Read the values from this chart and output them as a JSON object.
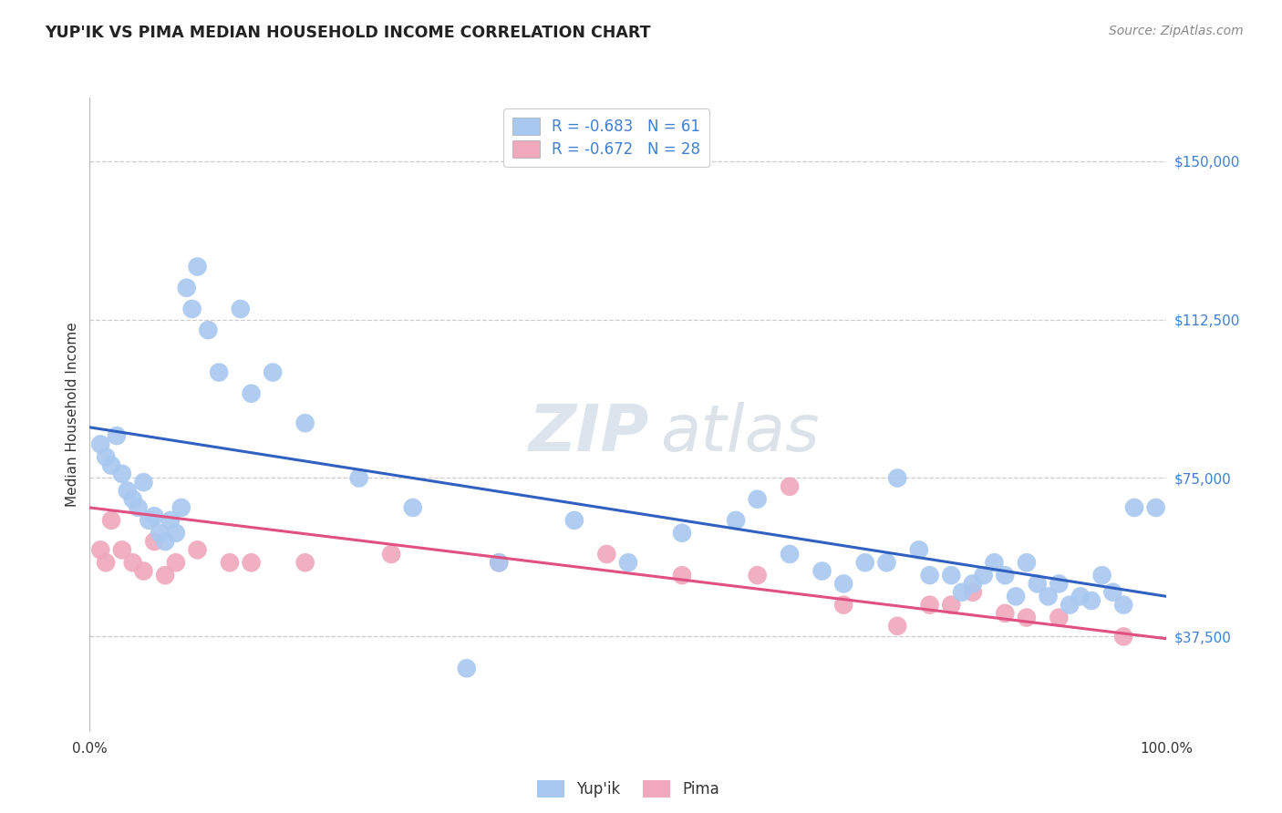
{
  "title": "YUP'IK VS PIMA MEDIAN HOUSEHOLD INCOME CORRELATION CHART",
  "source": "Source: ZipAtlas.com",
  "ylabel": "Median Household Income",
  "xmin": 0.0,
  "xmax": 100.0,
  "ymin": 15000,
  "ymax": 165000,
  "yticks": [
    37500,
    75000,
    112500,
    150000
  ],
  "ytick_labels": [
    "$37,500",
    "$75,000",
    "$112,500",
    "$150,000"
  ],
  "blue_R": -0.683,
  "blue_N": 61,
  "pink_R": -0.672,
  "pink_N": 28,
  "blue_color": "#a8c8f0",
  "pink_color": "#f0a8bc",
  "blue_line_color": "#3060c0",
  "pink_line_color": "#e05080",
  "tick_label_color": "#4080d0",
  "legend_label_blue": "Yup'ik",
  "legend_label_pink": "Pima",
  "background_color": "#ffffff",
  "grid_color": "#cccccc",
  "blue_line_y0": 87000,
  "blue_line_y1": 47000,
  "pink_line_y0": 68000,
  "pink_line_y1": 37000,
  "blue_x": [
    1.0,
    1.5,
    2.0,
    2.5,
    3.0,
    3.5,
    4.0,
    4.5,
    5.0,
    5.5,
    6.0,
    6.5,
    7.0,
    7.5,
    8.0,
    8.5,
    9.0,
    9.5,
    10.0,
    11.0,
    12.0,
    14.0,
    15.0,
    17.0,
    20.0,
    25.0,
    30.0,
    35.0,
    38.0,
    45.0,
    50.0,
    55.0,
    60.0,
    62.0,
    65.0,
    68.0,
    70.0,
    72.0,
    74.0,
    75.0,
    77.0,
    78.0,
    80.0,
    81.0,
    82.0,
    83.0,
    84.0,
    85.0,
    86.0,
    87.0,
    88.0,
    89.0,
    90.0,
    91.0,
    92.0,
    93.0,
    94.0,
    95.0,
    96.0,
    97.0,
    99.0
  ],
  "blue_y": [
    83000,
    80000,
    78000,
    85000,
    76000,
    72000,
    70000,
    68000,
    74000,
    65000,
    66000,
    62000,
    60000,
    65000,
    62000,
    68000,
    120000,
    115000,
    125000,
    110000,
    100000,
    115000,
    95000,
    100000,
    88000,
    75000,
    68000,
    30000,
    55000,
    65000,
    55000,
    62000,
    65000,
    70000,
    57000,
    53000,
    50000,
    55000,
    55000,
    75000,
    58000,
    52000,
    52000,
    48000,
    50000,
    52000,
    55000,
    52000,
    47000,
    55000,
    50000,
    47000,
    50000,
    45000,
    47000,
    46000,
    52000,
    48000,
    45000,
    68000,
    68000
  ],
  "pink_x": [
    1.0,
    1.5,
    2.0,
    3.0,
    4.0,
    5.0,
    6.0,
    7.0,
    8.0,
    10.0,
    13.0,
    15.0,
    20.0,
    28.0,
    38.0,
    48.0,
    55.0,
    62.0,
    65.0,
    70.0,
    75.0,
    78.0,
    80.0,
    82.0,
    85.0,
    87.0,
    90.0,
    96.0
  ],
  "pink_y": [
    58000,
    55000,
    65000,
    58000,
    55000,
    53000,
    60000,
    52000,
    55000,
    58000,
    55000,
    55000,
    55000,
    57000,
    55000,
    57000,
    52000,
    52000,
    73000,
    45000,
    40000,
    45000,
    45000,
    48000,
    43000,
    42000,
    42000,
    37500
  ]
}
